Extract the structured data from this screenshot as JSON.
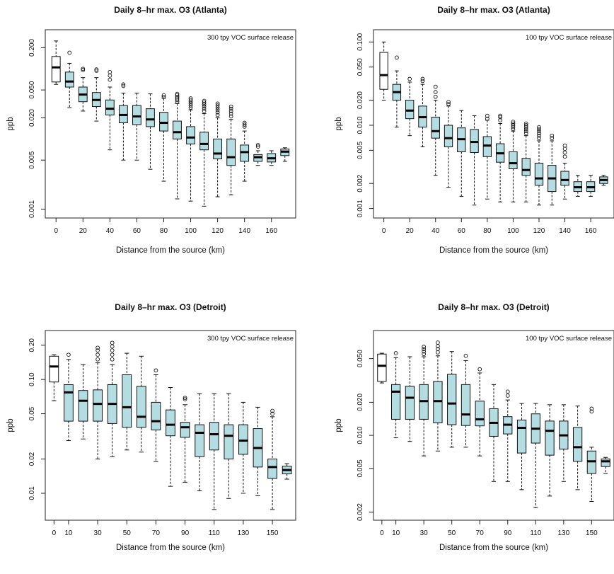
{
  "chart_data": [
    {
      "type": "boxplot",
      "title": "Daily 8–hr max. O3 (Atlanta)",
      "annotation": "300 tpy VOC surface release",
      "xlabel": "Distance from the source (km)",
      "ylabel": "ppb",
      "y_scale": "log",
      "ylim": [
        0.0009,
        0.3
      ],
      "y_ticks": [
        0.001,
        0.005,
        0.02,
        0.05,
        0.2
      ],
      "y_tick_labels": [
        "0.001",
        "0.005",
        "0.020",
        "0.050",
        "0.200"
      ],
      "x_ticks": [
        0,
        20,
        40,
        60,
        80,
        100,
        120,
        140,
        160
      ],
      "x_tick_labels": [
        "0",
        "20",
        "40",
        "60",
        "80",
        "100",
        "120",
        "140",
        "160"
      ],
      "xlim": [
        -8,
        178
      ],
      "box_fill": "#b3dde0",
      "boxes": [
        {
          "x": 0,
          "lo": 0.06,
          "q1": 0.065,
          "med": 0.105,
          "q3": 0.15,
          "hi": 0.25,
          "out": [],
          "fill": "#ffffff"
        },
        {
          "x": 10,
          "lo": 0.028,
          "q1": 0.055,
          "med": 0.066,
          "q3": 0.09,
          "hi": 0.12,
          "out": [
            0.17
          ]
        },
        {
          "x": 20,
          "lo": 0.025,
          "q1": 0.034,
          "med": 0.043,
          "q3": 0.055,
          "hi": 0.075,
          "out": [
            0.096,
            0.1
          ]
        },
        {
          "x": 30,
          "lo": 0.018,
          "q1": 0.029,
          "med": 0.036,
          "q3": 0.046,
          "hi": 0.075,
          "out": [
            0.094,
            0.098
          ]
        },
        {
          "x": 40,
          "lo": 0.007,
          "q1": 0.022,
          "med": 0.027,
          "q3": 0.036,
          "hi": 0.055,
          "out": [
            0.07,
            0.08,
            0.09
          ]
        },
        {
          "x": 50,
          "lo": 0.005,
          "q1": 0.017,
          "med": 0.022,
          "q3": 0.03,
          "hi": 0.045,
          "out": [
            0.057,
            0.06
          ]
        },
        {
          "x": 60,
          "lo": 0.005,
          "q1": 0.016,
          "med": 0.021,
          "q3": 0.03,
          "hi": 0.045,
          "out": []
        },
        {
          "x": 70,
          "lo": 0.0037,
          "q1": 0.015,
          "med": 0.019,
          "q3": 0.027,
          "hi": 0.044,
          "out": []
        },
        {
          "x": 80,
          "lo": 0.0025,
          "q1": 0.013,
          "med": 0.017,
          "q3": 0.024,
          "hi": 0.038,
          "out": [
            0.04,
            0.042
          ]
        },
        {
          "x": 90,
          "lo": 0.0014,
          "q1": 0.01,
          "med": 0.0125,
          "q3": 0.018,
          "hi": 0.032,
          "out": [
            0.034,
            0.036,
            0.038,
            0.04,
            0.042,
            0.044
          ]
        },
        {
          "x": 100,
          "lo": 0.0013,
          "q1": 0.0085,
          "med": 0.0105,
          "q3": 0.015,
          "hi": 0.026,
          "out": [
            0.028,
            0.03,
            0.032,
            0.034,
            0.036,
            0.038
          ]
        },
        {
          "x": 110,
          "lo": 0.0011,
          "q1": 0.007,
          "med": 0.0085,
          "q3": 0.0125,
          "hi": 0.023,
          "out": [
            0.025,
            0.027,
            0.029,
            0.031,
            0.033,
            0.035
          ]
        },
        {
          "x": 120,
          "lo": 0.0015,
          "q1": 0.0052,
          "med": 0.0062,
          "q3": 0.01,
          "hi": 0.02,
          "out": [
            0.022,
            0.024,
            0.026,
            0.028,
            0.03,
            0.032
          ]
        },
        {
          "x": 130,
          "lo": 0.0016,
          "q1": 0.0042,
          "med": 0.0055,
          "q3": 0.01,
          "hi": 0.019,
          "out": [
            0.021,
            0.023,
            0.025,
            0.027,
            0.029
          ]
        },
        {
          "x": 140,
          "lo": 0.0025,
          "q1": 0.0048,
          "med": 0.0065,
          "q3": 0.0082,
          "hi": 0.013,
          "out": [
            0.015,
            0.016,
            0.017
          ]
        },
        {
          "x": 150,
          "lo": 0.0042,
          "q1": 0.0048,
          "med": 0.0055,
          "q3": 0.006,
          "hi": 0.0068,
          "out": [
            0.0078,
            0.0082
          ]
        },
        {
          "x": 160,
          "lo": 0.0042,
          "q1": 0.0047,
          "med": 0.0053,
          "q3": 0.0062,
          "hi": 0.0068,
          "out": []
        },
        {
          "x": 170,
          "lo": 0.0048,
          "q1": 0.0058,
          "med": 0.0066,
          "q3": 0.0072,
          "hi": 0.0075,
          "out": []
        }
      ]
    },
    {
      "type": "boxplot",
      "title": "Daily 8–hr max. O3 (Atlanta)",
      "annotation": "100 tpy VOC surface release",
      "xlabel": "Distance from the source (km)",
      "ylabel": "ppb",
      "y_scale": "log",
      "ylim": [
        0.0009,
        0.12
      ],
      "y_ticks": [
        0.001,
        0.002,
        0.005,
        0.01,
        0.02,
        0.05,
        0.1
      ],
      "y_tick_labels": [
        "0.001",
        "0.002",
        "0.005",
        "0.010",
        "0.020",
        "0.050",
        "0.100"
      ],
      "x_ticks": [
        0,
        20,
        40,
        60,
        80,
        100,
        120,
        140,
        160
      ],
      "x_tick_labels": [
        "0",
        "20",
        "40",
        "60",
        "80",
        "100",
        "120",
        "140",
        "160"
      ],
      "xlim": [
        -8,
        178
      ],
      "box_fill": "#b3dde0",
      "boxes": [
        {
          "x": 0,
          "lo": 0.02,
          "q1": 0.027,
          "med": 0.04,
          "q3": 0.075,
          "hi": 0.1,
          "out": [],
          "fill": "#ffffff"
        },
        {
          "x": 10,
          "lo": 0.0095,
          "q1": 0.02,
          "med": 0.025,
          "q3": 0.031,
          "hi": 0.045,
          "out": [
            0.065
          ]
        },
        {
          "x": 20,
          "lo": 0.0075,
          "q1": 0.012,
          "med": 0.015,
          "q3": 0.02,
          "hi": 0.033,
          "out": [
            0.036
          ]
        },
        {
          "x": 30,
          "lo": 0.0055,
          "q1": 0.0095,
          "med": 0.0125,
          "q3": 0.017,
          "hi": 0.031,
          "out": [
            0.034,
            0.036
          ]
        },
        {
          "x": 40,
          "lo": 0.0025,
          "q1": 0.007,
          "med": 0.0085,
          "q3": 0.0125,
          "hi": 0.02,
          "out": [
            0.022,
            0.025,
            0.029
          ]
        },
        {
          "x": 50,
          "lo": 0.0018,
          "q1": 0.0055,
          "med": 0.007,
          "q3": 0.01,
          "hi": 0.017,
          "out": [
            0.018,
            0.019
          ]
        },
        {
          "x": 60,
          "lo": 0.0014,
          "q1": 0.0048,
          "med": 0.0068,
          "q3": 0.0093,
          "hi": 0.015,
          "out": []
        },
        {
          "x": 70,
          "lo": 0.0011,
          "q1": 0.0047,
          "med": 0.0063,
          "q3": 0.0089,
          "hi": 0.013,
          "out": []
        },
        {
          "x": 80,
          "lo": 0.0013,
          "q1": 0.0042,
          "med": 0.0057,
          "q3": 0.0073,
          "hi": 0.0115,
          "out": [
            0.012,
            0.013
          ]
        },
        {
          "x": 90,
          "lo": 0.0012,
          "q1": 0.0036,
          "med": 0.0046,
          "q3": 0.006,
          "hi": 0.0105,
          "out": [
            0.0115,
            0.0125,
            0.013
          ]
        },
        {
          "x": 100,
          "lo": 0.0012,
          "q1": 0.003,
          "med": 0.0035,
          "q3": 0.0048,
          "hi": 0.0085,
          "out": [
            0.009,
            0.0095,
            0.01,
            0.0105,
            0.011
          ]
        },
        {
          "x": 110,
          "lo": 0.0012,
          "q1": 0.0025,
          "med": 0.0029,
          "q3": 0.004,
          "hi": 0.0075,
          "out": [
            0.008,
            0.0085,
            0.009,
            0.0095,
            0.01,
            0.0105
          ]
        },
        {
          "x": 120,
          "lo": 0.0011,
          "q1": 0.0019,
          "med": 0.0023,
          "q3": 0.0035,
          "hi": 0.0065,
          "out": [
            0.007,
            0.0075,
            0.008,
            0.0085,
            0.009,
            0.0095
          ]
        },
        {
          "x": 130,
          "lo": 0.0011,
          "q1": 0.0016,
          "med": 0.0023,
          "q3": 0.0033,
          "hi": 0.0065,
          "out": [
            0.007,
            0.0075
          ]
        },
        {
          "x": 140,
          "lo": 0.0013,
          "q1": 0.0019,
          "med": 0.0022,
          "q3": 0.0028,
          "hi": 0.0035,
          "out": [
            0.0042,
            0.0047,
            0.0052,
            0.0057
          ]
        },
        {
          "x": 150,
          "lo": 0.0014,
          "q1": 0.0016,
          "med": 0.0018,
          "q3": 0.0021,
          "hi": 0.0025,
          "out": []
        },
        {
          "x": 160,
          "lo": 0.0014,
          "q1": 0.0016,
          "med": 0.0018,
          "q3": 0.0021,
          "hi": 0.0025,
          "out": []
        },
        {
          "x": 170,
          "lo": 0.0019,
          "q1": 0.002,
          "med": 0.0022,
          "q3": 0.0024,
          "hi": 0.0025,
          "out": []
        }
      ]
    },
    {
      "type": "boxplot",
      "title": "Daily 8–hr max. O3 (Detroit)",
      "annotation": "300 tpy VOC surface release",
      "xlabel": "Distance from the source (km)",
      "ylabel": "ppb",
      "y_scale": "log",
      "ylim": [
        0.0065,
        0.24
      ],
      "y_ticks": [
        0.01,
        0.02,
        0.05,
        0.1,
        0.2
      ],
      "y_tick_labels": [
        "0.01",
        "0.02",
        "0.05",
        "0.10",
        "0.20"
      ],
      "x_ticks": [
        0,
        10,
        30,
        50,
        70,
        90,
        110,
        130,
        150
      ],
      "x_tick_labels": [
        "0",
        "10",
        "30",
        "50",
        "70",
        "90",
        "110",
        "130",
        "150"
      ],
      "xlim": [
        -6,
        166
      ],
      "box_fill": "#b3dde0",
      "boxes": [
        {
          "x": 0,
          "lo": 0.065,
          "q1": 0.095,
          "med": 0.13,
          "q3": 0.16,
          "hi": 0.165,
          "out": [],
          "fill": "#ffffff"
        },
        {
          "x": 10,
          "lo": 0.029,
          "q1": 0.043,
          "med": 0.077,
          "q3": 0.09,
          "hi": 0.15,
          "out": [
            0.165
          ]
        },
        {
          "x": 20,
          "lo": 0.03,
          "q1": 0.043,
          "med": 0.065,
          "q3": 0.08,
          "hi": 0.135,
          "out": []
        },
        {
          "x": 30,
          "lo": 0.02,
          "q1": 0.043,
          "med": 0.061,
          "q3": 0.081,
          "hi": 0.14,
          "out": [
            0.15,
            0.165,
            0.18,
            0.19
          ]
        },
        {
          "x": 40,
          "lo": 0.021,
          "q1": 0.041,
          "med": 0.061,
          "q3": 0.09,
          "hi": 0.135,
          "out": [
            0.15,
            0.165,
            0.18,
            0.195,
            0.21
          ]
        },
        {
          "x": 50,
          "lo": 0.024,
          "q1": 0.038,
          "med": 0.057,
          "q3": 0.11,
          "hi": 0.17,
          "out": []
        },
        {
          "x": 60,
          "lo": 0.023,
          "q1": 0.038,
          "med": 0.047,
          "q3": 0.087,
          "hi": 0.16,
          "out": []
        },
        {
          "x": 70,
          "lo": 0.019,
          "q1": 0.036,
          "med": 0.043,
          "q3": 0.063,
          "hi": 0.11,
          "out": [
            0.12
          ]
        },
        {
          "x": 80,
          "lo": 0.0115,
          "q1": 0.032,
          "med": 0.04,
          "q3": 0.054,
          "hi": 0.085,
          "out": []
        },
        {
          "x": 90,
          "lo": 0.0125,
          "q1": 0.031,
          "med": 0.038,
          "q3": 0.042,
          "hi": 0.06,
          "out": [
            0.067,
            0.069
          ]
        },
        {
          "x": 100,
          "lo": 0.0105,
          "q1": 0.021,
          "med": 0.034,
          "q3": 0.04,
          "hi": 0.075,
          "out": []
        },
        {
          "x": 110,
          "lo": 0.0072,
          "q1": 0.024,
          "med": 0.033,
          "q3": 0.042,
          "hi": 0.075,
          "out": []
        },
        {
          "x": 120,
          "lo": 0.009,
          "q1": 0.02,
          "med": 0.032,
          "q3": 0.04,
          "hi": 0.075,
          "out": []
        },
        {
          "x": 130,
          "lo": 0.01,
          "q1": 0.022,
          "med": 0.029,
          "q3": 0.04,
          "hi": 0.063,
          "out": []
        },
        {
          "x": 140,
          "lo": 0.0095,
          "q1": 0.017,
          "med": 0.025,
          "q3": 0.037,
          "hi": 0.057,
          "out": []
        },
        {
          "x": 150,
          "lo": 0.0072,
          "q1": 0.0135,
          "med": 0.017,
          "q3": 0.02,
          "hi": 0.047,
          "out": [
            0.05,
            0.053
          ]
        },
        {
          "x": 160,
          "lo": 0.0133,
          "q1": 0.0148,
          "med": 0.016,
          "q3": 0.0173,
          "hi": 0.0182,
          "out": []
        }
      ]
    },
    {
      "type": "boxplot",
      "title": "Daily 8–hr max. O3 (Detroit)",
      "annotation": "100 tpy VOC surface release",
      "xlabel": "Distance from the source (km)",
      "ylabel": "ppb",
      "y_scale": "log",
      "ylim": [
        0.0019,
        0.08
      ],
      "y_ticks": [
        0.002,
        0.005,
        0.01,
        0.02,
        0.05
      ],
      "y_tick_labels": [
        "0.002",
        "0.005",
        "0.010",
        "0.020",
        "0.050"
      ],
      "x_ticks": [
        0,
        10,
        30,
        50,
        70,
        90,
        110,
        130,
        150
      ],
      "x_tick_labels": [
        "0",
        "10",
        "30",
        "50",
        "70",
        "90",
        "110",
        "130",
        "150"
      ],
      "xlim": [
        -6,
        166
      ],
      "box_fill": "#b3dde0",
      "boxes": [
        {
          "x": 0,
          "lo": 0.03,
          "q1": 0.031,
          "med": 0.043,
          "q3": 0.055,
          "hi": 0.056,
          "out": [],
          "fill": "#ffffff"
        },
        {
          "x": 10,
          "lo": 0.0095,
          "q1": 0.014,
          "med": 0.025,
          "q3": 0.029,
          "hi": 0.051,
          "out": [
            0.056
          ]
        },
        {
          "x": 20,
          "lo": 0.0088,
          "q1": 0.014,
          "med": 0.022,
          "q3": 0.028,
          "hi": 0.052,
          "out": []
        },
        {
          "x": 30,
          "lo": 0.0065,
          "q1": 0.014,
          "med": 0.0205,
          "q3": 0.029,
          "hi": 0.052,
          "out": [
            0.055,
            0.058,
            0.061,
            0.064
          ]
        },
        {
          "x": 40,
          "lo": 0.0072,
          "q1": 0.013,
          "med": 0.0205,
          "q3": 0.031,
          "hi": 0.053,
          "out": [
            0.057,
            0.061,
            0.065,
            0.07
          ]
        },
        {
          "x": 50,
          "lo": 0.0078,
          "q1": 0.0125,
          "med": 0.0195,
          "q3": 0.036,
          "hi": 0.058,
          "out": []
        },
        {
          "x": 60,
          "lo": 0.0078,
          "q1": 0.0123,
          "med": 0.0155,
          "q3": 0.029,
          "hi": 0.048,
          "out": [
            0.053
          ]
        },
        {
          "x": 70,
          "lo": 0.0065,
          "q1": 0.0122,
          "med": 0.014,
          "q3": 0.0205,
          "hi": 0.037,
          "out": [
            0.04
          ]
        },
        {
          "x": 80,
          "lo": 0.0038,
          "q1": 0.0098,
          "med": 0.013,
          "q3": 0.0175,
          "hi": 0.029,
          "out": []
        },
        {
          "x": 90,
          "lo": 0.0038,
          "q1": 0.0103,
          "med": 0.0125,
          "q3": 0.0148,
          "hi": 0.021,
          "out": [
            0.023,
            0.025
          ]
        },
        {
          "x": 100,
          "lo": 0.0032,
          "q1": 0.0069,
          "med": 0.0117,
          "q3": 0.0138,
          "hi": 0.0195,
          "out": []
        },
        {
          "x": 110,
          "lo": 0.0022,
          "q1": 0.0085,
          "med": 0.0115,
          "q3": 0.0157,
          "hi": 0.0195,
          "out": []
        },
        {
          "x": 120,
          "lo": 0.0028,
          "q1": 0.0066,
          "med": 0.011,
          "q3": 0.0135,
          "hi": 0.019,
          "out": []
        },
        {
          "x": 130,
          "lo": 0.0038,
          "q1": 0.0075,
          "med": 0.01,
          "q3": 0.0135,
          "hi": 0.019,
          "out": []
        },
        {
          "x": 140,
          "lo": 0.0032,
          "q1": 0.0058,
          "med": 0.0078,
          "q3": 0.0118,
          "hi": 0.0185,
          "out": []
        },
        {
          "x": 150,
          "lo": 0.0025,
          "q1": 0.0045,
          "med": 0.0058,
          "q3": 0.0072,
          "hi": 0.0078,
          "out": [
            0.0165,
            0.0175
          ]
        },
        {
          "x": 160,
          "lo": 0.0045,
          "q1": 0.0052,
          "med": 0.0058,
          "q3": 0.0061,
          "hi": 0.0063,
          "out": []
        }
      ]
    }
  ]
}
